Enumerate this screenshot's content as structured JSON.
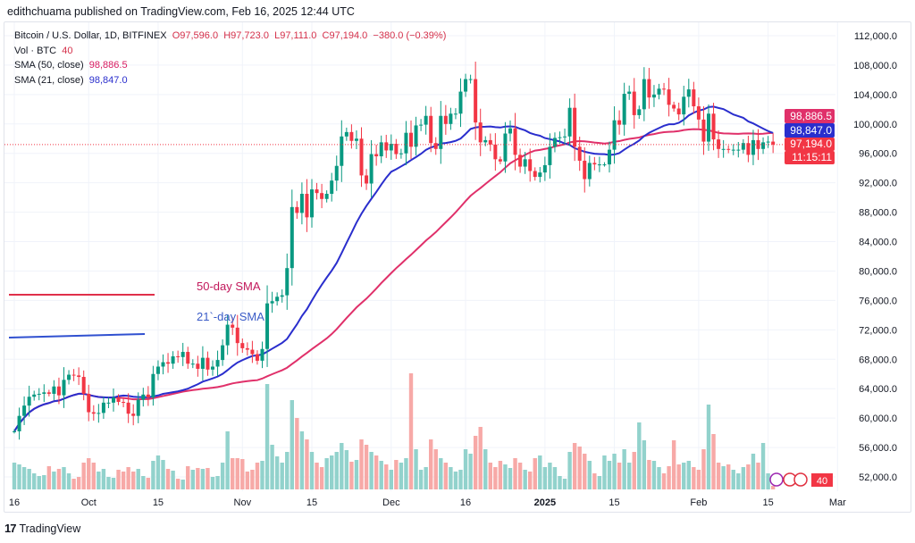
{
  "publisher_line": "edithchuama published on TradingView.com, Feb 16, 2025 12:44 UTC",
  "legend": {
    "symbol": "Bitcoin / U.S. Dollar, 1D, BITFINEX",
    "open": "O97,596.0",
    "high": "H97,723.0",
    "low": "L97,111.0",
    "close": "C97,194.0",
    "change": "−380.0 (−0.39%)",
    "vol_label": "Vol · BTC",
    "vol_value": "40",
    "sma50_label": "SMA (50, close)",
    "sma50_value": "98,886.5",
    "sma21_label": "SMA (21, close)",
    "sma21_value": "98,847.0"
  },
  "annotations": {
    "sma50": "50-day SMA",
    "sma21": "21`-day SMA"
  },
  "price_tags": {
    "sma50": "98,886.5",
    "sma21": "98,847.0",
    "last": "97,194.0",
    "countdown": "11:15:11",
    "volume": "40"
  },
  "footer": {
    "brand": "TradingView"
  },
  "colors": {
    "up": "#089981",
    "down": "#f23645",
    "vol_up": "#92d2cc",
    "vol_down": "#f7a9a7",
    "sma50": "#e0306a",
    "sma21": "#2a2ecd"
  },
  "chart_data": {
    "type": "candlestick",
    "start_date": "2024-09-16",
    "interval": "1D",
    "ylim": [
      50000,
      113000
    ],
    "y_ticks": [
      "112,000.0",
      "108,000.0",
      "104,000.0",
      "100,000.0",
      "96,000.0",
      "92,000.0",
      "88,000.0",
      "84,000.0",
      "80,000.0",
      "76,000.0",
      "72,000.0",
      "68,000.0",
      "64,000.0",
      "60,000.0",
      "56,000.0",
      "52,000.0"
    ],
    "y_tick_values": [
      112000,
      108000,
      104000,
      100000,
      96000,
      92000,
      88000,
      84000,
      80000,
      76000,
      72000,
      68000,
      64000,
      60000,
      56000,
      52000
    ],
    "x_ticks": [
      [
        "16",
        "2024-09-16"
      ],
      [
        "Oct",
        "2024-10-01"
      ],
      [
        "15",
        "2024-10-15"
      ],
      [
        "Nov",
        "2024-11-01"
      ],
      [
        "15",
        "2024-11-15"
      ],
      [
        "Dec",
        "2024-12-01"
      ],
      [
        "16",
        "2024-12-16"
      ],
      [
        "2025",
        "2025-01-01"
      ],
      [
        "15",
        "2025-01-15"
      ],
      [
        "Feb",
        "2025-02-01"
      ],
      [
        "15",
        "2025-02-15"
      ],
      [
        "Mar",
        "2025-03-01"
      ]
    ],
    "close": [
      58200,
      60300,
      61700,
      62900,
      63200,
      63300,
      63500,
      63300,
      64300,
      63100,
      65200,
      65900,
      65800,
      65600,
      63300,
      60800,
      60600,
      60700,
      62100,
      62100,
      62800,
      62200,
      62100,
      60600,
      60300,
      62500,
      63200,
      62800,
      66000,
      67000,
      67600,
      67400,
      68400,
      68300,
      69000,
      67400,
      67400,
      66700,
      68200,
      66600,
      67000,
      67900,
      69900,
      72700,
      72300,
      70200,
      69500,
      69300,
      68700,
      67800,
      69400,
      75600,
      75900,
      76500,
      76700,
      80400,
      88700,
      87900,
      90500,
      87300,
      91100,
      90600,
      89800,
      90500,
      92300,
      94300,
      98300,
      98900,
      97700,
      98000,
      93000,
      91900,
      95900,
      95600,
      97500,
      96400,
      97300,
      95900,
      96000,
      98800,
      96900,
      99800,
      99900,
      101100,
      97400,
      96600,
      101100,
      100000,
      101400,
      101400,
      104400,
      106100,
      106100,
      100200,
      97500,
      97800,
      97200,
      95200,
      94900,
      98700,
      99400,
      95800,
      94200,
      95200,
      93600,
      92800,
      93400,
      94400,
      96900,
      98100,
      98200,
      98300,
      102200,
      96900,
      95000,
      92500,
      94700,
      94500,
      94500,
      94500,
      96500,
      100500,
      99900,
      104100,
      104400,
      101200,
      102000,
      106100,
      103600,
      104000,
      104800,
      104700,
      102600,
      102100,
      101300,
      103700,
      104700,
      102400,
      100600,
      97600,
      101400,
      97900,
      96600,
      96600,
      96500,
      96500,
      96500,
      97400,
      95800,
      97800,
      96600,
      97500,
      97600,
      97194
    ],
    "volume_btc": [
      300,
      280,
      250,
      230,
      180,
      150,
      160,
      260,
      200,
      230,
      250,
      180,
      120,
      140,
      300,
      350,
      300,
      200,
      230,
      140,
      130,
      220,
      200,
      250,
      200,
      230,
      150,
      130,
      320,
      380,
      330,
      230,
      210,
      120,
      110,
      260,
      220,
      240,
      230,
      240,
      140,
      150,
      300,
      650,
      350,
      350,
      340,
      200,
      220,
      300,
      320,
      1180,
      500,
      370,
      300,
      420,
      1000,
      800,
      650,
      560,
      420,
      300,
      250,
      350,
      380,
      420,
      520,
      440,
      310,
      330,
      560,
      500,
      420,
      380,
      320,
      280,
      220,
      330,
      300,
      350,
      1300,
      450,
      220,
      250,
      560,
      450,
      350,
      300,
      250,
      200,
      220,
      450,
      400,
      600,
      700,
      450,
      300,
      250,
      320,
      280,
      240,
      350,
      300,
      220,
      200,
      350,
      380,
      250,
      300,
      250,
      150,
      120,
      420,
      520,
      480,
      400,
      320,
      180,
      150,
      380,
      320,
      400,
      300,
      450,
      300,
      420,
      750,
      550,
      330,
      320,
      250,
      180,
      260,
      550,
      280,
      300,
      320,
      250,
      220,
      450,
      950,
      620,
      300,
      260,
      280,
      220,
      180,
      250,
      280,
      400,
      300,
      520,
      180,
      40
    ],
    "series": [
      {
        "name": "SMA (50, close)",
        "period": 50
      },
      {
        "name": "SMA (21, close)",
        "period": 21
      }
    ],
    "grid": true
  }
}
